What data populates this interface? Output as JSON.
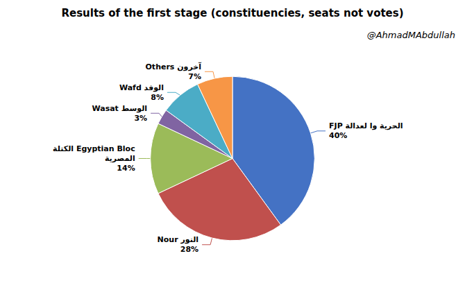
{
  "chart_data": {
    "type": "pie",
    "title": "Results of the first stage (constituencies, seats not votes)",
    "annotations": [
      "@AhmadMAbdullah"
    ],
    "categories": [
      "FJP الحرية وا لعدالة",
      "Nour النور",
      "الكتلة Egyptian Bloc\nالمصرية",
      "Wasat الوسط",
      "Wafd الوفد",
      "Others آخرون"
    ],
    "values": [
      40,
      28,
      14,
      3,
      8,
      7
    ],
    "value_labels": [
      "40%",
      "28%",
      "14%",
      "3%",
      "8%",
      "7%"
    ],
    "colors": [
      "#4472C4",
      "#C0504D",
      "#9BBB59",
      "#8064A2",
      "#4BACC6",
      "#F79646"
    ],
    "data_labels": true
  }
}
